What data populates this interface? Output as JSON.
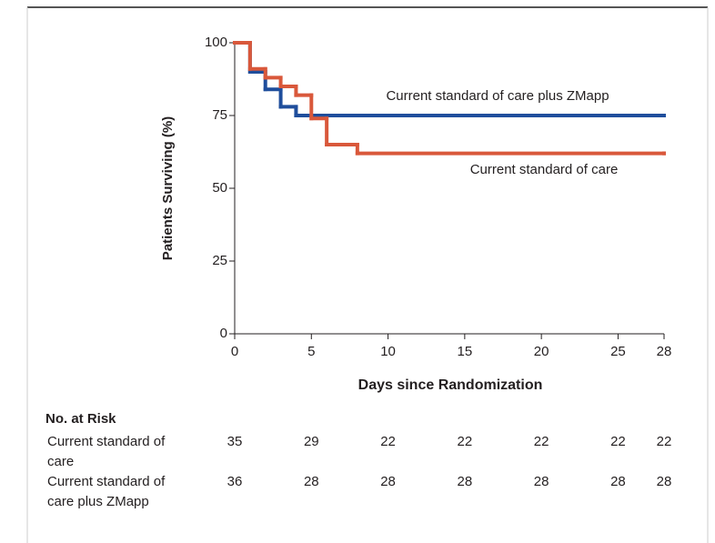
{
  "chart_data": {
    "type": "step",
    "y_label": "Patients Surviving (%)",
    "x_label": "Days since Randomization",
    "xlim": [
      0,
      28
    ],
    "xticks": [
      0,
      5,
      10,
      15,
      20,
      25,
      28
    ],
    "ylim": [
      0,
      100
    ],
    "yticks": [
      0,
      25,
      50,
      75,
      100
    ],
    "series": [
      {
        "name": "Current standard of care plus ZMapp",
        "color": "#1f4e9c",
        "x": [
          0,
          1,
          2,
          3,
          4,
          28
        ],
        "values": [
          100,
          90,
          84,
          78,
          75,
          75
        ]
      },
      {
        "name": "Current standard of care",
        "color": "#d9583b",
        "x": [
          0,
          1,
          2,
          3,
          4,
          5,
          6,
          8,
          28
        ],
        "values": [
          100,
          91,
          88,
          85,
          82,
          74,
          65,
          62,
          62
        ]
      }
    ],
    "risk_table": {
      "title": "No. at Risk",
      "rows": [
        {
          "label": "Current standard of care",
          "values": [
            35,
            29,
            22,
            22,
            22,
            22,
            22
          ]
        },
        {
          "label": "Current standard of care plus ZMapp",
          "values": [
            36,
            28,
            28,
            28,
            28,
            28,
            28
          ]
        }
      ]
    }
  }
}
